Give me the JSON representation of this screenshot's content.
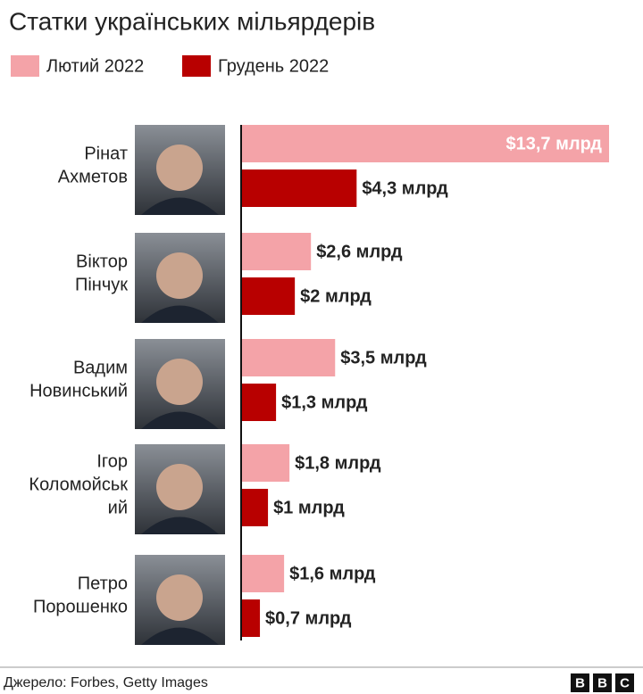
{
  "chart_data": {
    "type": "bar",
    "orientation": "horizontal",
    "title": "Статки українських мільярдерів",
    "categories": [
      [
        "Рінат",
        "Ахметов"
      ],
      [
        "Віктор",
        "Пінчук"
      ],
      [
        "Вадим",
        "Новинський"
      ],
      [
        "Ігор",
        "Коломойськ",
        "ий"
      ],
      [
        "Петро",
        "Порошенко"
      ]
    ],
    "series": [
      {
        "name": "Лютий 2022",
        "color": "#f4a3a8",
        "values": [
          13.7,
          2.6,
          3.5,
          1.8,
          1.6
        ],
        "value_labels": [
          "$13,7 млрд",
          "$2,6 млрд",
          "$3,5 млрд",
          "$1,8 млрд",
          "$1,6 млрд"
        ]
      },
      {
        "name": "Грудень 2022",
        "color": "#b80000",
        "values": [
          4.3,
          2,
          1.3,
          1,
          0.7
        ],
        "value_labels": [
          "$4,3 млрд",
          "$2 млрд",
          "$1,3 млрд",
          "$1 млрд",
          "$0,7 млрд"
        ]
      }
    ],
    "source": "Джерело: Forbes, Getty Images",
    "brand": [
      "B",
      "B",
      "C"
    ]
  }
}
